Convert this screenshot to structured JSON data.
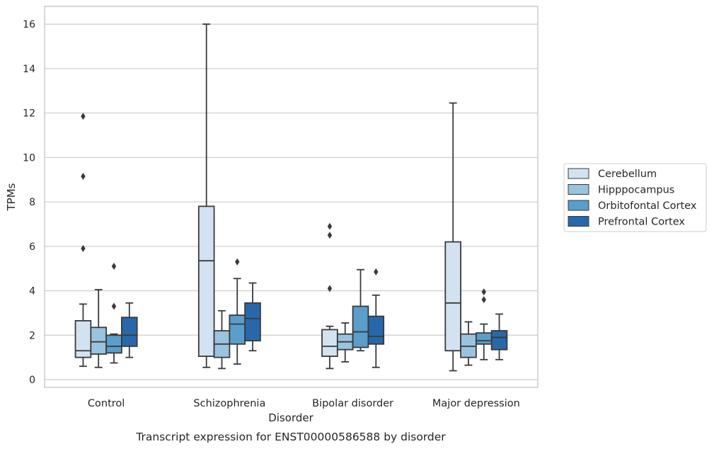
{
  "chart_data": {
    "type": "boxplot",
    "title": "",
    "caption": "Transcript expression for ENST00000586588 by disorder",
    "xlabel": "Disorder",
    "ylabel": "TPMs",
    "ylim": [
      -0.35,
      16.8
    ],
    "yticks": [
      0,
      2,
      4,
      6,
      8,
      10,
      12,
      14,
      16
    ],
    "grid": "horizontal",
    "legend_position": "right",
    "categories": [
      "Control",
      "Schizophrenia",
      "Bipolar disorder",
      "Major depression"
    ],
    "series": [
      {
        "name": "Cerebellum",
        "color": "#d2e2f1",
        "boxes": [
          {
            "whislo": 0.6,
            "q1": 1.0,
            "med": 1.3,
            "q3": 2.65,
            "whishi": 3.4,
            "fliers": [
              5.9,
              9.15,
              11.85
            ]
          },
          {
            "whislo": 0.55,
            "q1": 1.05,
            "med": 5.35,
            "q3": 7.8,
            "whishi": 16.0,
            "fliers": []
          },
          {
            "whislo": 0.5,
            "q1": 1.05,
            "med": 1.5,
            "q3": 2.25,
            "whishi": 2.4,
            "fliers": [
              4.1,
              6.5,
              6.9
            ]
          },
          {
            "whislo": 0.4,
            "q1": 1.3,
            "med": 3.45,
            "q3": 6.2,
            "whishi": 12.45,
            "fliers": []
          }
        ]
      },
      {
        "name": "Hipppocampus",
        "color": "#9ac3dd",
        "boxes": [
          {
            "whislo": 0.55,
            "q1": 1.15,
            "med": 1.7,
            "q3": 2.35,
            "whishi": 4.05,
            "fliers": []
          },
          {
            "whislo": 0.5,
            "q1": 1.0,
            "med": 1.6,
            "q3": 2.2,
            "whishi": 3.1,
            "fliers": []
          },
          {
            "whislo": 0.8,
            "q1": 1.35,
            "med": 1.7,
            "q3": 2.05,
            "whishi": 2.55,
            "fliers": []
          },
          {
            "whislo": 0.65,
            "q1": 1.0,
            "med": 1.5,
            "q3": 2.05,
            "whishi": 2.6,
            "fliers": []
          }
        ]
      },
      {
        "name": "Orbitofontal Cortex",
        "color": "#5a9ecb",
        "boxes": [
          {
            "whislo": 0.75,
            "q1": 1.2,
            "med": 1.5,
            "q3": 2.0,
            "whishi": 2.05,
            "fliers": [
              3.3,
              5.1
            ]
          },
          {
            "whislo": 0.7,
            "q1": 1.6,
            "med": 2.5,
            "q3": 2.9,
            "whishi": 4.55,
            "fliers": [
              5.3
            ]
          },
          {
            "whislo": 1.3,
            "q1": 1.45,
            "med": 2.15,
            "q3": 3.3,
            "whishi": 4.95,
            "fliers": []
          },
          {
            "whislo": 0.9,
            "q1": 1.6,
            "med": 1.75,
            "q3": 2.1,
            "whishi": 2.5,
            "fliers": [
              3.6,
              3.95
            ]
          }
        ]
      },
      {
        "name": "Prefrontal Cortex",
        "color": "#2868aa",
        "boxes": [
          {
            "whislo": 1.0,
            "q1": 1.5,
            "med": 2.0,
            "q3": 2.8,
            "whishi": 3.45,
            "fliers": []
          },
          {
            "whislo": 1.3,
            "q1": 1.75,
            "med": 2.75,
            "q3": 3.45,
            "whishi": 4.35,
            "fliers": []
          },
          {
            "whislo": 0.55,
            "q1": 1.6,
            "med": 1.95,
            "q3": 2.85,
            "whishi": 3.8,
            "fliers": [
              4.85
            ]
          },
          {
            "whislo": 0.9,
            "q1": 1.35,
            "med": 1.9,
            "q3": 2.2,
            "whishi": 2.95,
            "fliers": []
          }
        ]
      }
    ]
  }
}
